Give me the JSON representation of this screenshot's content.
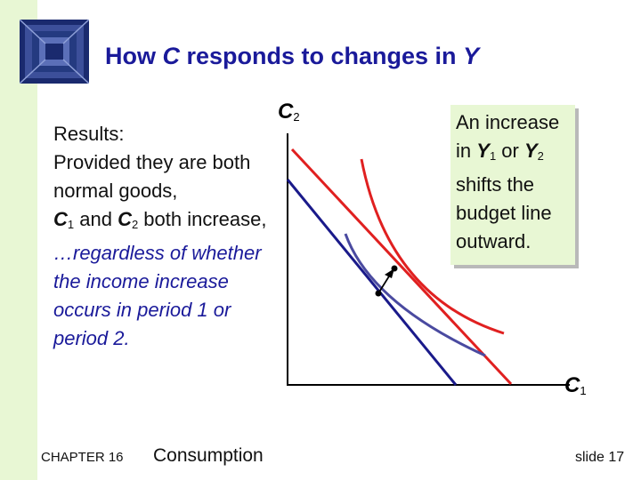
{
  "title": {
    "prefix": "How ",
    "var1": "C",
    "middle": " responds to changes in ",
    "var2": "Y"
  },
  "bullets": {
    "line1": "Results:",
    "line2": "Provided they are both normal goods,",
    "c1_letter": "C",
    "c1_sub": "1",
    "and_text": " and ",
    "c2_letter": "C",
    "c2_sub": "2",
    "line3_tail": " both increase,",
    "emphasis": "…regardless of whether the income increase occurs in period 1 or period 2."
  },
  "callout": {
    "part1": "An increase in ",
    "y1_letter": "Y",
    "y1_sub": "1",
    "or_text": " or ",
    "y2_letter": "Y",
    "y2_sub": "2",
    "part2": " shifts the budget line outward."
  },
  "axes": {
    "y_letter": "C",
    "y_sub": "2",
    "x_letter": "C",
    "x_sub": "1"
  },
  "colors": {
    "title": "#1a1a9a",
    "budget_initial": "#1a1a8a",
    "budget_new": "#e02020",
    "indifference_initial": "#4a4aa0",
    "callout_bg": "#e8f7d4"
  },
  "footer": {
    "chapter": "CHAPTER 16",
    "topic": "Consumption",
    "slide": "slide 17"
  }
}
